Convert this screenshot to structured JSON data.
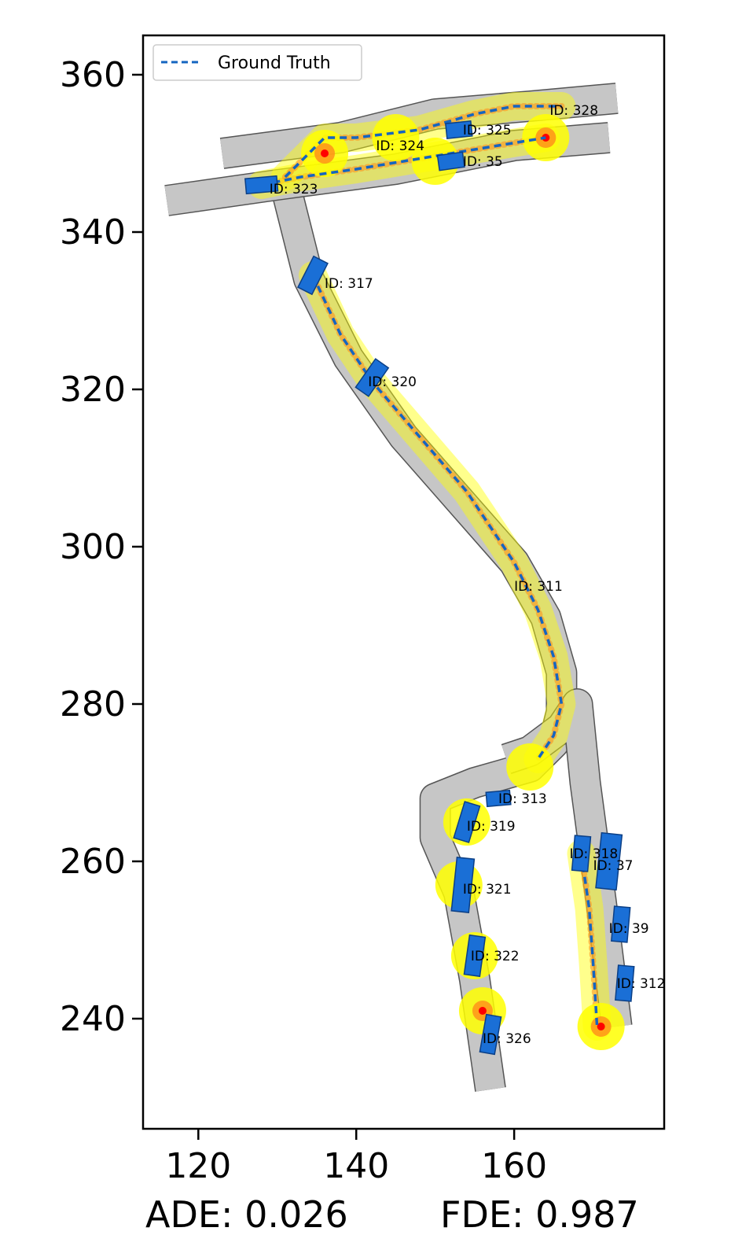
{
  "chart_data": {
    "type": "scatter",
    "xlim": [
      113,
      179
    ],
    "ylim": [
      226,
      365
    ],
    "x_ticks": [
      120,
      140,
      160
    ],
    "y_ticks": [
      240,
      260,
      280,
      300,
      320,
      340,
      360
    ],
    "legend": {
      "label": "Ground Truth",
      "placement": "top-left"
    },
    "metrics": {
      "ade": "ADE: 0.026",
      "fde": "FDE: 0.987"
    },
    "colors": {
      "vehicle": "#1a6fd6",
      "ground_truth": "#1565c0",
      "road": "#c6c6c6",
      "highlight": "#ffff00",
      "prediction": "#ff8c1a",
      "endpoint": "#ff0000"
    },
    "lanes": [
      {
        "name": "s-curve",
        "points": [
          [
            131,
            346
          ],
          [
            134,
            334
          ],
          [
            139,
            324
          ],
          [
            146,
            314
          ],
          [
            153,
            306
          ],
          [
            160,
            298
          ],
          [
            164,
            291
          ],
          [
            166,
            284
          ],
          [
            166,
            279
          ],
          [
            165,
            275
          ],
          [
            162,
            272
          ],
          [
            155,
            270
          ],
          [
            150,
            268
          ],
          [
            150,
            263
          ],
          [
            153,
            256
          ],
          [
            155,
            245
          ],
          [
            157,
            231
          ]
        ]
      },
      {
        "name": "right-lane",
        "points": [
          [
            159,
            273
          ],
          [
            162,
            274
          ],
          [
            166,
            277
          ],
          [
            168,
            280
          ],
          [
            169,
            270
          ],
          [
            171,
            255
          ],
          [
            173,
            239
          ]
        ]
      },
      {
        "name": "top-lane-upper",
        "points": [
          [
            123,
            350
          ],
          [
            138,
            352
          ],
          [
            150,
            355
          ],
          [
            162,
            356
          ],
          [
            173,
            357
          ]
        ]
      },
      {
        "name": "top-lane-lower",
        "points": [
          [
            116,
            344
          ],
          [
            130,
            346
          ],
          [
            145,
            348
          ],
          [
            160,
            351
          ],
          [
            172,
            352
          ]
        ]
      }
    ],
    "vehicles": [
      {
        "id": "ID: 328",
        "x": 168,
        "y": 356,
        "w": 0,
        "h": 0,
        "heading": 0
      },
      {
        "id": "ID: 325",
        "x": 153,
        "y": 353,
        "w": 3.2,
        "h": 1.9,
        "heading": 6
      },
      {
        "id": "ID: 324",
        "x": 140,
        "y": 351,
        "w": 0,
        "h": 0,
        "heading": 0
      },
      {
        "id": "ID: 35",
        "x": 152,
        "y": 349,
        "w": 3.2,
        "h": 1.9,
        "heading": 8
      },
      {
        "id": "ID: 323",
        "x": 128,
        "y": 346,
        "w": 4.0,
        "h": 1.9,
        "heading": 5
      },
      {
        "id": "ID: 317",
        "x": 134.5,
        "y": 334.5,
        "w": 4.4,
        "h": 2.0,
        "heading": 63
      },
      {
        "id": "ID: 320",
        "x": 142,
        "y": 321.5,
        "w": 4.4,
        "h": 2.0,
        "heading": 55
      },
      {
        "id": "ID: 311",
        "x": 161,
        "y": 295,
        "w": 0,
        "h": 0,
        "heading": 0
      },
      {
        "id": "ID: 313",
        "x": 158,
        "y": 268,
        "w": 3.0,
        "h": 1.8,
        "heading": 5
      },
      {
        "id": "ID: 319",
        "x": 154,
        "y": 265,
        "w": 4.8,
        "h": 2.0,
        "heading": 73
      },
      {
        "id": "ID: 318",
        "x": 168.5,
        "y": 261,
        "w": 4.4,
        "h": 2.0,
        "heading": 85
      },
      {
        "id": "ID: 37",
        "x": 172,
        "y": 260,
        "w": 7.0,
        "h": 2.6,
        "heading": 84
      },
      {
        "id": "ID: 321",
        "x": 153.5,
        "y": 257,
        "w": 6.8,
        "h": 2.2,
        "heading": 84
      },
      {
        "id": "ID: 39",
        "x": 173.5,
        "y": 252,
        "w": 4.4,
        "h": 2.0,
        "heading": 85
      },
      {
        "id": "ID: 322",
        "x": 155,
        "y": 248,
        "w": 5.0,
        "h": 2.0,
        "heading": 82
      },
      {
        "id": "ID: 312",
        "x": 174,
        "y": 244.5,
        "w": 4.4,
        "h": 2.0,
        "heading": 85
      },
      {
        "id": "ID: 326",
        "x": 157,
        "y": 238,
        "w": 4.8,
        "h": 1.9,
        "heading": 80
      }
    ],
    "vehicle_labels": [
      {
        "text": "ID: 328",
        "x": 164.5,
        "y": 355.5
      },
      {
        "text": "ID: 325",
        "x": 153.5,
        "y": 353
      },
      {
        "text": "ID: 324",
        "x": 142.5,
        "y": 351
      },
      {
        "text": "ID: 35",
        "x": 153.5,
        "y": 349
      },
      {
        "text": "ID: 323",
        "x": 129,
        "y": 345.5
      },
      {
        "text": "ID: 317",
        "x": 136,
        "y": 333.5
      },
      {
        "text": "ID: 320",
        "x": 141.5,
        "y": 321
      },
      {
        "text": "ID: 311",
        "x": 160,
        "y": 295
      },
      {
        "text": "ID: 313",
        "x": 158,
        "y": 268
      },
      {
        "text": "ID: 319",
        "x": 154,
        "y": 264.5
      },
      {
        "text": "ID: 318",
        "x": 167,
        "y": 261
      },
      {
        "text": "ID: 37",
        "x": 170,
        "y": 259.5
      },
      {
        "text": "ID: 321",
        "x": 153.5,
        "y": 256.5
      },
      {
        "text": "ID: 39",
        "x": 172,
        "y": 251.5
      },
      {
        "text": "ID: 322",
        "x": 154.5,
        "y": 248
      },
      {
        "text": "ID: 312",
        "x": 173,
        "y": 244.5
      },
      {
        "text": "ID: 326",
        "x": 156,
        "y": 237.5
      }
    ],
    "ground_truth_series": [
      {
        "name": "veh-311",
        "points": [
          [
            134.5,
            334.5
          ],
          [
            138,
            327
          ],
          [
            142,
            321
          ],
          [
            148,
            314
          ],
          [
            154,
            307
          ],
          [
            160,
            298
          ],
          [
            163,
            292
          ],
          [
            165,
            286
          ],
          [
            166,
            280
          ],
          [
            165,
            276
          ],
          [
            163,
            273
          ]
        ]
      },
      {
        "name": "veh-318",
        "points": [
          [
            168.5,
            261
          ],
          [
            169.5,
            254
          ],
          [
            170,
            247
          ],
          [
            170.5,
            239
          ]
        ]
      },
      {
        "name": "veh-324",
        "points": [
          [
            128,
            346
          ],
          [
            133,
            347
          ],
          [
            140,
            348
          ],
          [
            146,
            349
          ],
          [
            152,
            350
          ],
          [
            158,
            351
          ],
          [
            164,
            352
          ]
        ]
      },
      {
        "name": "veh-328",
        "points": [
          [
            131,
            347
          ],
          [
            134,
            350
          ],
          [
            136,
            352
          ],
          [
            140,
            352
          ],
          [
            148,
            353
          ],
          [
            155,
            355
          ],
          [
            160,
            356
          ],
          [
            166,
            356
          ]
        ]
      }
    ],
    "highlight_points": [
      [
        136,
        350
      ],
      [
        164,
        352
      ],
      [
        154,
        265
      ],
      [
        153,
        257
      ],
      [
        155,
        248
      ],
      [
        156,
        241
      ],
      [
        171,
        239
      ],
      [
        162,
        272
      ],
      [
        145,
        352
      ],
      [
        150,
        349
      ]
    ],
    "endpoints": [
      [
        164,
        352
      ],
      [
        136,
        350
      ],
      [
        156,
        241
      ],
      [
        171,
        239
      ]
    ]
  }
}
